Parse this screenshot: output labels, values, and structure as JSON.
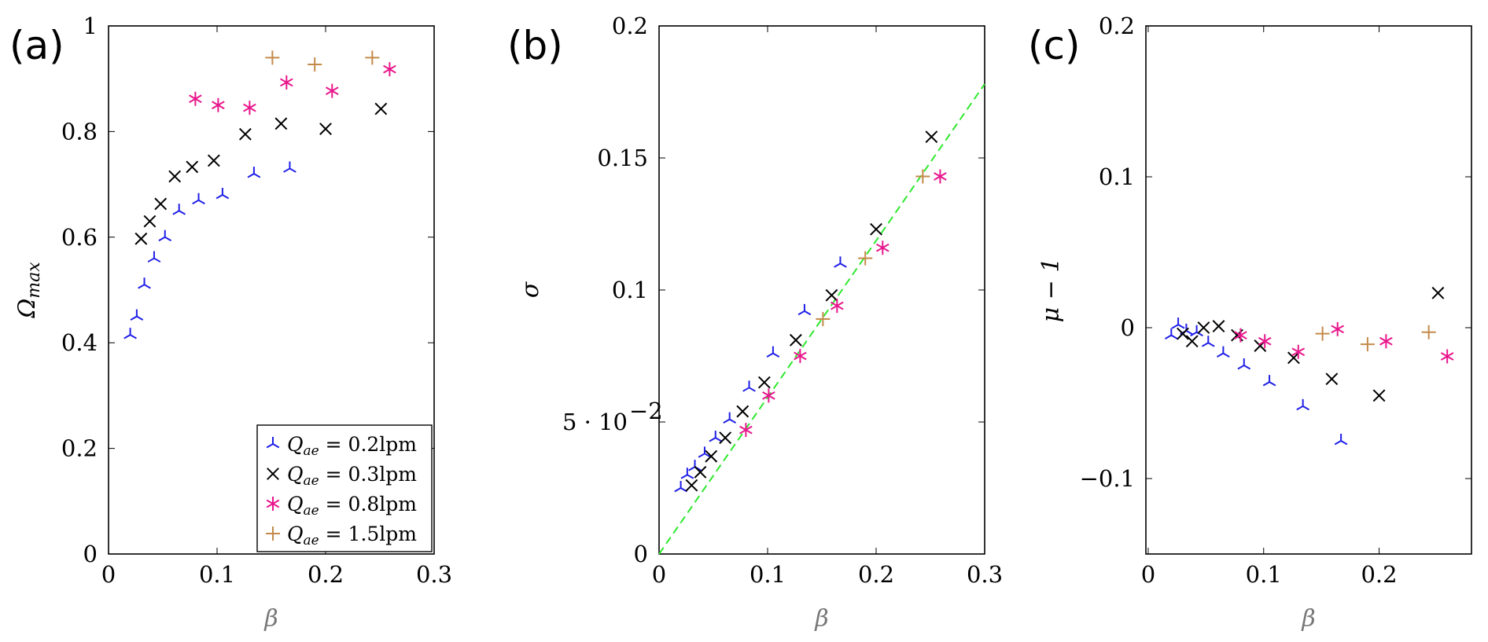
{
  "chart_data": [
    {
      "type": "scatter",
      "panel_label": "(a)",
      "xlabel": "β",
      "ylabel": "Ω_max",
      "xlim": [
        0,
        0.3
      ],
      "ylim": [
        0,
        1
      ],
      "xticks": [
        0,
        0.1,
        0.2,
        0.3
      ],
      "xtick_labels": [
        "0",
        "0.1",
        "0.2",
        "0.3"
      ],
      "yticks": [
        0,
        0.2,
        0.4,
        0.6,
        0.8,
        1
      ],
      "ytick_labels": [
        "0",
        "0.2",
        "0.4",
        "0.6",
        "0.8",
        "1"
      ],
      "grid": false,
      "legend_position": "bottom-right",
      "series": [
        {
          "name": "Q_ae = 0.2lpm",
          "color": "#1f1fe8",
          "marker": "tri",
          "points": [
            [
              0.02,
              0.415
            ],
            [
              0.026,
              0.45
            ],
            [
              0.033,
              0.51
            ],
            [
              0.042,
              0.56
            ],
            [
              0.052,
              0.6
            ],
            [
              0.065,
              0.65
            ],
            [
              0.083,
              0.67
            ],
            [
              0.105,
              0.68
            ],
            [
              0.134,
              0.72
            ],
            [
              0.167,
              0.73
            ]
          ]
        },
        {
          "name": "Q_ae = 0.3lpm",
          "color": "#000000",
          "marker": "x",
          "points": [
            [
              0.03,
              0.597
            ],
            [
              0.038,
              0.63
            ],
            [
              0.048,
              0.663
            ],
            [
              0.061,
              0.715
            ],
            [
              0.077,
              0.733
            ],
            [
              0.097,
              0.745
            ],
            [
              0.126,
              0.795
            ],
            [
              0.159,
              0.815
            ],
            [
              0.2,
              0.805
            ],
            [
              0.251,
              0.843
            ]
          ]
        },
        {
          "name": "Q_ae = 0.8lpm",
          "color": "#e8168c",
          "marker": "star",
          "points": [
            [
              0.08,
              0.862
            ],
            [
              0.101,
              0.85
            ],
            [
              0.13,
              0.845
            ],
            [
              0.164,
              0.893
            ],
            [
              0.206,
              0.877
            ],
            [
              0.259,
              0.918
            ]
          ]
        },
        {
          "name": "Q_ae = 1.5lpm",
          "color": "#c48a4a",
          "marker": "plus",
          "points": [
            [
              0.151,
              0.94
            ],
            [
              0.19,
              0.927
            ],
            [
              0.243,
              0.94
            ]
          ]
        }
      ],
      "legend_entries": [
        {
          "q": "Q",
          "sub": "ae",
          "rest": "= 0.2lpm"
        },
        {
          "q": "Q",
          "sub": "ae",
          "rest": "= 0.3lpm"
        },
        {
          "q": "Q",
          "sub": "ae",
          "rest": "= 0.8lpm"
        },
        {
          "q": "Q",
          "sub": "ae",
          "rest": "= 1.5lpm"
        }
      ]
    },
    {
      "type": "scatter",
      "panel_label": "(b)",
      "xlabel": "β",
      "ylabel": "σ",
      "xlim": [
        0,
        0.3
      ],
      "ylim": [
        0,
        0.2
      ],
      "xticks": [
        0,
        0.1,
        0.2,
        0.3
      ],
      "xtick_labels": [
        "0",
        "0.1",
        "0.2",
        "0.3"
      ],
      "yticks": [
        0,
        0.05,
        0.1,
        0.15,
        0.2
      ],
      "ytick_labels": [
        "0",
        "5 · 10",
        "0.1",
        "0.15",
        "0.2"
      ],
      "ytick_exponent": "−2",
      "grid": false,
      "reference_line": {
        "color": "#2ee82e",
        "dash": true,
        "points": [
          [
            0,
            0
          ],
          [
            0.3,
            0.178
          ]
        ]
      },
      "series": [
        {
          "name": "Q_ae = 0.2lpm",
          "color": "#1f1fe8",
          "marker": "tri",
          "points": [
            [
              0.02,
              0.025
            ],
            [
              0.026,
              0.03
            ],
            [
              0.033,
              0.033
            ],
            [
              0.042,
              0.038
            ],
            [
              0.052,
              0.044
            ],
            [
              0.065,
              0.051
            ],
            [
              0.083,
              0.063
            ],
            [
              0.105,
              0.076
            ],
            [
              0.134,
              0.092
            ],
            [
              0.167,
              0.11
            ]
          ]
        },
        {
          "name": "Q_ae = 0.3lpm",
          "color": "#000000",
          "marker": "x",
          "points": [
            [
              0.03,
              0.026
            ],
            [
              0.038,
              0.031
            ],
            [
              0.048,
              0.037
            ],
            [
              0.061,
              0.044
            ],
            [
              0.077,
              0.054
            ],
            [
              0.097,
              0.065
            ],
            [
              0.126,
              0.081
            ],
            [
              0.159,
              0.098
            ],
            [
              0.2,
              0.123
            ],
            [
              0.251,
              0.158
            ]
          ]
        },
        {
          "name": "Q_ae = 0.8lpm",
          "color": "#e8168c",
          "marker": "star",
          "points": [
            [
              0.08,
              0.047
            ],
            [
              0.101,
              0.06
            ],
            [
              0.13,
              0.075
            ],
            [
              0.164,
              0.094
            ],
            [
              0.206,
              0.116
            ],
            [
              0.259,
              0.143
            ]
          ]
        },
        {
          "name": "Q_ae = 1.5lpm",
          "color": "#c48a4a",
          "marker": "plus",
          "points": [
            [
              0.151,
              0.089
            ],
            [
              0.19,
              0.112
            ],
            [
              0.243,
              0.143
            ]
          ]
        }
      ]
    },
    {
      "type": "scatter",
      "panel_label": "(c)",
      "xlabel": "β",
      "ylabel": "μ − 1",
      "xlim": [
        -0.002,
        0.28
      ],
      "ylim": [
        -0.15,
        0.2
      ],
      "xticks": [
        0,
        0.1,
        0.2
      ],
      "xtick_labels": [
        "0",
        "0.1",
        "0.2"
      ],
      "yticks": [
        -0.1,
        0,
        0.1,
        0.2
      ],
      "ytick_labels": [
        "−0.1",
        "0",
        "0.1",
        "0.2"
      ],
      "grid": false,
      "series": [
        {
          "name": "Q_ae = 0.2lpm",
          "color": "#1f1fe8",
          "marker": "tri",
          "points": [
            [
              0.02,
              -0.005
            ],
            [
              0.026,
              0.002
            ],
            [
              0.033,
              -0.002
            ],
            [
              0.042,
              -0.003
            ],
            [
              0.052,
              -0.01
            ],
            [
              0.065,
              -0.017
            ],
            [
              0.083,
              -0.025
            ],
            [
              0.105,
              -0.036
            ],
            [
              0.134,
              -0.052
            ],
            [
              0.167,
              -0.075
            ]
          ]
        },
        {
          "name": "Q_ae = 0.3lpm",
          "color": "#000000",
          "marker": "x",
          "points": [
            [
              0.03,
              -0.004
            ],
            [
              0.038,
              -0.009
            ],
            [
              0.048,
              0.0
            ],
            [
              0.061,
              0.001
            ],
            [
              0.077,
              -0.005
            ],
            [
              0.097,
              -0.012
            ],
            [
              0.126,
              -0.02
            ],
            [
              0.159,
              -0.034
            ],
            [
              0.2,
              -0.045
            ],
            [
              0.251,
              0.023
            ]
          ]
        },
        {
          "name": "Q_ae = 0.8lpm",
          "color": "#e8168c",
          "marker": "star",
          "points": [
            [
              0.08,
              -0.005
            ],
            [
              0.101,
              -0.009
            ],
            [
              0.13,
              -0.016
            ],
            [
              0.164,
              -0.001
            ],
            [
              0.206,
              -0.009
            ],
            [
              0.259,
              -0.019
            ]
          ]
        },
        {
          "name": "Q_ae = 1.5lpm",
          "color": "#c48a4a",
          "marker": "plus",
          "points": [
            [
              0.151,
              -0.004
            ],
            [
              0.19,
              -0.011
            ],
            [
              0.243,
              -0.003
            ]
          ]
        }
      ]
    }
  ]
}
